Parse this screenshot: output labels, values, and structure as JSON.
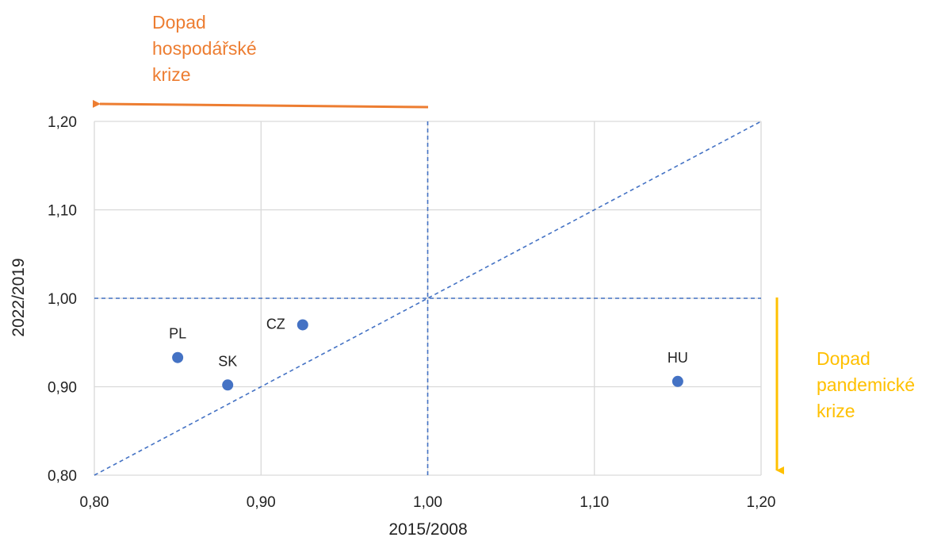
{
  "chart_data": {
    "type": "scatter",
    "xlabel": "2015/2008",
    "ylabel": "2022/2019",
    "xlim": [
      0.8,
      1.2
    ],
    "ylim": [
      0.8,
      1.2
    ],
    "xticks": [
      "0,80",
      "0,90",
      "1,00",
      "1,10",
      "1,20"
    ],
    "yticks": [
      "0,80",
      "0,90",
      "1,00",
      "1,10",
      "1,20"
    ],
    "grid": true,
    "points": [
      {
        "label": "PL",
        "x": 0.85,
        "y": 0.933
      },
      {
        "label": "SK",
        "x": 0.88,
        "y": 0.902
      },
      {
        "label": "CZ",
        "x": 0.925,
        "y": 0.97
      },
      {
        "label": "HU",
        "x": 1.15,
        "y": 0.906
      }
    ],
    "reference_lines": {
      "vertical_x": 1.0,
      "horizontal_y": 1.0,
      "diagonal": "y = x"
    },
    "point_color": "#4472C4",
    "reference_line_color": "#4472C4"
  },
  "annotations": {
    "economic_crisis": {
      "lines": [
        "Dopad",
        "hospodářské",
        "krize"
      ],
      "color": "#ED7D31",
      "arrow_direction": "left"
    },
    "pandemic_crisis": {
      "lines": [
        "Dopad",
        "pandemické",
        "krize"
      ],
      "color": "#FFC000",
      "arrow_direction": "down"
    }
  }
}
